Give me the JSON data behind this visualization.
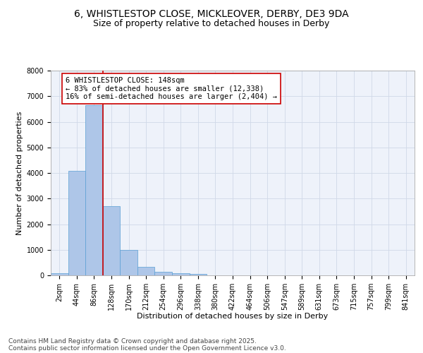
{
  "title_line1": "6, WHISTLESTOP CLOSE, MICKLEOVER, DERBY, DE3 9DA",
  "title_line2": "Size of property relative to detached houses in Derby",
  "xlabel": "Distribution of detached houses by size in Derby",
  "ylabel": "Number of detached properties",
  "categories": [
    "2sqm",
    "44sqm",
    "86sqm",
    "128sqm",
    "170sqm",
    "212sqm",
    "254sqm",
    "296sqm",
    "338sqm",
    "380sqm",
    "422sqm",
    "464sqm",
    "506sqm",
    "547sqm",
    "589sqm",
    "631sqm",
    "673sqm",
    "715sqm",
    "757sqm",
    "799sqm",
    "841sqm"
  ],
  "values": [
    80,
    4080,
    6650,
    2700,
    1000,
    340,
    130,
    80,
    60,
    0,
    0,
    0,
    0,
    0,
    0,
    0,
    0,
    0,
    0,
    0,
    0
  ],
  "bar_color": "#aec6e8",
  "bar_edge_color": "#5a9fd4",
  "vline_x_index": 3,
  "vline_color": "#cc0000",
  "annotation_text": "6 WHISTLESTOP CLOSE: 148sqm\n← 83% of detached houses are smaller (12,338)\n16% of semi-detached houses are larger (2,404) →",
  "annotation_box_color": "#ffffff",
  "annotation_box_edge_color": "#cc0000",
  "ylim": [
    0,
    8000
  ],
  "yticks": [
    0,
    1000,
    2000,
    3000,
    4000,
    5000,
    6000,
    7000,
    8000
  ],
  "grid_color": "#d0d8e8",
  "background_color": "#eef2fa",
  "footer_line1": "Contains HM Land Registry data © Crown copyright and database right 2025.",
  "footer_line2": "Contains public sector information licensed under the Open Government Licence v3.0.",
  "title_fontsize": 10,
  "subtitle_fontsize": 9,
  "axis_label_fontsize": 8,
  "tick_fontsize": 7,
  "annotation_fontsize": 7.5,
  "footer_fontsize": 6.5
}
